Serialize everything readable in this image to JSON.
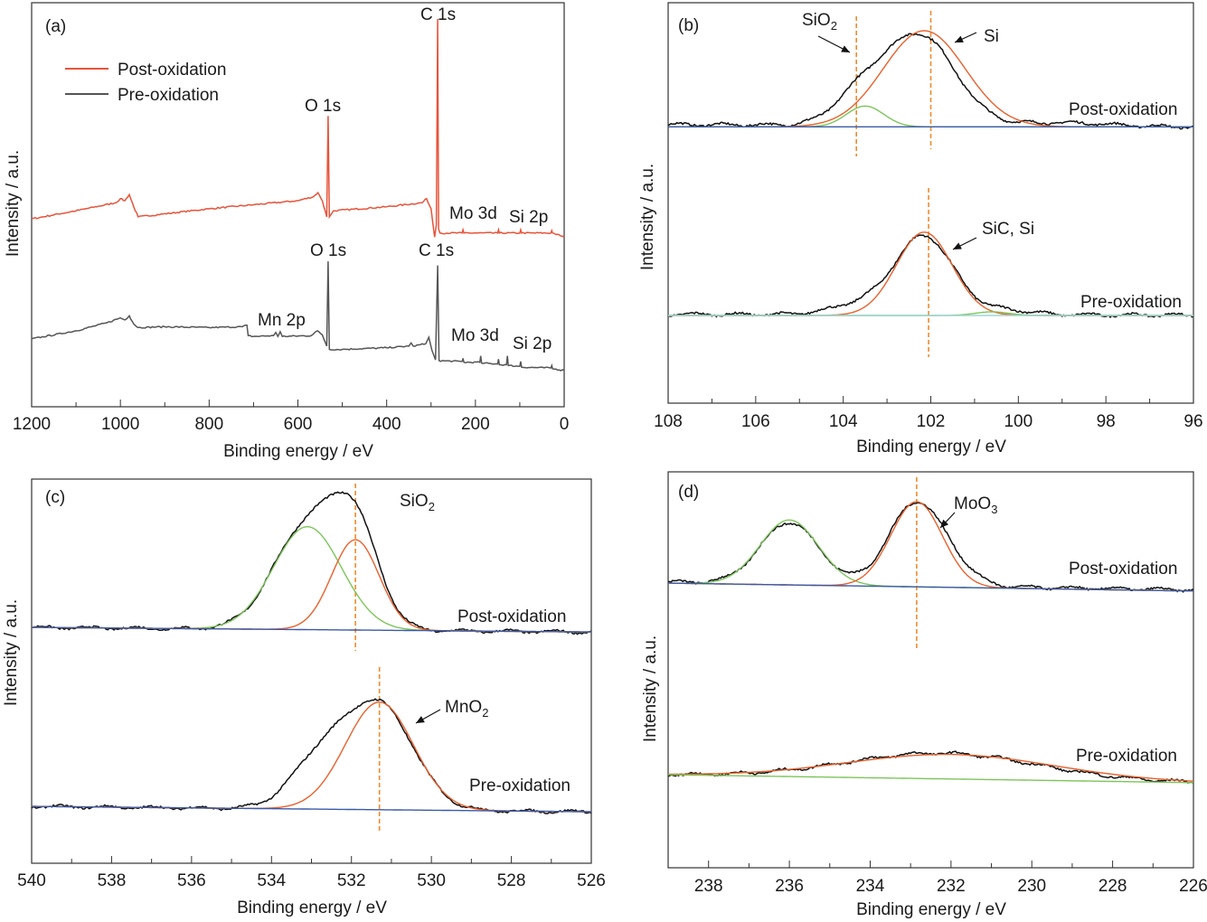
{
  "chart_data": [
    {
      "panel": "(a)",
      "type": "line",
      "xlabel": "Binding energy / eV",
      "ylabel": "Intensity / a.u.",
      "xlim": [
        1200,
        0
      ],
      "ylim": [
        0,
        100
      ],
      "xticks": [
        1200,
        1000,
        800,
        600,
        400,
        200,
        0
      ],
      "minor_step": 100,
      "legend": {
        "position": "top-left",
        "entries": [
          {
            "label": "Post-oxidation",
            "color": "#e8533a"
          },
          {
            "label": "Pre-oxidation",
            "color": "#555555"
          }
        ]
      },
      "series": [
        {
          "name": "Post-oxidation",
          "color": "#e8533a",
          "points": [
            [
              1200,
              46.5
            ],
            [
              1100,
              48.5
            ],
            [
              1010,
              50.5
            ],
            [
              1000,
              51.5
            ],
            [
              990,
              51
            ],
            [
              980,
              52.5
            ],
            [
              970,
              49.5
            ],
            [
              960,
              47
            ],
            [
              800,
              49
            ],
            [
              700,
              50
            ],
            [
              600,
              51
            ],
            [
              565,
              52
            ],
            [
              555,
              53
            ],
            [
              545,
              51
            ],
            [
              535,
              47
            ],
            [
              532,
              72
            ],
            [
              529,
              47
            ],
            [
              520,
              48.5
            ],
            [
              400,
              49.5
            ],
            [
              320,
              50.5
            ],
            [
              310,
              51.5
            ],
            [
              300,
              49
            ],
            [
              292,
              42
            ],
            [
              288,
              45
            ],
            [
              285,
              96
            ],
            [
              283,
              44
            ],
            [
              280,
              43
            ],
            [
              230,
              43
            ],
            [
              228,
              43.8
            ],
            [
              226,
              43
            ],
            [
              150,
              43
            ],
            [
              148,
              43.8
            ],
            [
              146,
              43
            ],
            [
              100,
              43
            ],
            [
              98,
              43.8
            ],
            [
              96,
              43
            ],
            [
              30,
              43
            ],
            [
              28,
              43.6
            ],
            [
              26,
              43
            ],
            [
              0,
              42
            ]
          ]
        },
        {
          "name": "Pre-oxidation",
          "color": "#555555",
          "points": [
            [
              1200,
              16.8
            ],
            [
              1100,
              18.8
            ],
            [
              1030,
              20.8
            ],
            [
              1000,
              22
            ],
            [
              990,
              21.5
            ],
            [
              980,
              22.5
            ],
            [
              970,
              20.5
            ],
            [
              960,
              19.6
            ],
            [
              900,
              19.8
            ],
            [
              800,
              19.6
            ],
            [
              725,
              19.8
            ],
            [
              715,
              20.2
            ],
            [
              712,
              17.6
            ],
            [
              700,
              17.4
            ],
            [
              655,
              17.6
            ],
            [
              650,
              18.4
            ],
            [
              645,
              17.4
            ],
            [
              640,
              18.6
            ],
            [
              635,
              17.4
            ],
            [
              570,
              17.6
            ],
            [
              556,
              18.8
            ],
            [
              545,
              17.8
            ],
            [
              535,
              15
            ],
            [
              532,
              36
            ],
            [
              529,
              14.2
            ],
            [
              500,
              14.2
            ],
            [
              400,
              14.6
            ],
            [
              350,
              15
            ],
            [
              345,
              15.8
            ],
            [
              340,
              15
            ],
            [
              312,
              15.6
            ],
            [
              305,
              17.2
            ],
            [
              298,
              14
            ],
            [
              290,
              11.6
            ],
            [
              285,
              35
            ],
            [
              282,
              11.4
            ],
            [
              230,
              11.2
            ],
            [
              228,
              12
            ],
            [
              226,
              11
            ],
            [
              190,
              11
            ],
            [
              188,
              12.6
            ],
            [
              186,
              10.8
            ],
            [
              150,
              10.6
            ],
            [
              148,
              11.8
            ],
            [
              146,
              10.4
            ],
            [
              130,
              10.4
            ],
            [
              128,
              12.6
            ],
            [
              126,
              10.2
            ],
            [
              100,
              10
            ],
            [
              98,
              11.2
            ],
            [
              96,
              9.8
            ],
            [
              30,
              9.6
            ],
            [
              28,
              10.2
            ],
            [
              26,
              9.4
            ],
            [
              0,
              9
            ]
          ]
        }
      ],
      "annotations": [
        {
          "text": "(a)"
        },
        {
          "text": "C 1s"
        },
        {
          "text": "O 1s"
        },
        {
          "text": "Mo 3d"
        },
        {
          "text": "Si 2p"
        },
        {
          "text": "O 1s"
        },
        {
          "text": "C 1s"
        },
        {
          "text": "Mn 2p"
        },
        {
          "text": "Mo 3d"
        },
        {
          "text": "Si 2p"
        }
      ]
    },
    {
      "panel": "(b)",
      "type": "line",
      "xlabel": "Binding energy / eV",
      "ylabel": "Intensity / a.u.",
      "xlim": [
        108,
        96
      ],
      "ylim": [
        0,
        100
      ],
      "xticks": [
        108,
        106,
        104,
        102,
        100,
        98,
        96
      ],
      "minor_step": 1,
      "series": [
        {
          "name": "Post-oxidation raw",
          "color": "#111111",
          "noisy": true,
          "baseline": [
            69.6,
            69
          ],
          "peaks": [
            {
              "center": 102.25,
              "height": 22.5,
              "fwhm": 1.9
            },
            {
              "center": 103.6,
              "height": 7,
              "fwhm": 1.4
            },
            {
              "center": 99,
              "height": 0.9,
              "fwhm": 2.5
            }
          ]
        },
        {
          "name": "Post-oxidation Si fit",
          "color": "#e8602c",
          "baseline": [
            69,
            69
          ],
          "peaks": [
            {
              "center": 102.15,
              "height": 24,
              "fwhm": 2.2
            }
          ]
        },
        {
          "name": "Post-oxidation SiO2 fit",
          "color": "#7dc55a",
          "baseline": [
            69,
            69
          ],
          "peaks": [
            {
              "center": 103.5,
              "height": 5.2,
              "fwhm": 1.0
            }
          ]
        },
        {
          "name": "Post-oxidation background",
          "color": "#3a5aa8",
          "baseline": [
            69,
            69
          ],
          "peaks": []
        },
        {
          "name": "Pre-oxidation raw",
          "color": "#111111",
          "noisy": true,
          "baseline": [
            22.2,
            22
          ],
          "peaks": [
            {
              "center": 102.15,
              "height": 19.5,
              "fwhm": 1.55
            },
            {
              "center": 103.6,
              "height": 2.5,
              "fwhm": 1.6
            },
            {
              "center": 100.3,
              "height": 1.2,
              "fwhm": 1.4
            }
          ]
        },
        {
          "name": "Pre-oxidation SiC/Si fit",
          "color": "#e8602c",
          "baseline": [
            21.9,
            21.9
          ],
          "peaks": [
            {
              "center": 102.15,
              "height": 20.8,
              "fwhm": 1.5
            }
          ]
        },
        {
          "name": "Pre-oxidation minor fit",
          "color": "#7dc55a",
          "baseline": [
            21.9,
            21.9
          ],
          "peaks": [
            {
              "center": 100.6,
              "height": 0.9,
              "fwhm": 0.9
            }
          ]
        },
        {
          "name": "Pre-oxidation background",
          "color": "#9fd6d6",
          "baseline": [
            21.9,
            21.9
          ],
          "peaks": []
        }
      ],
      "reference_lines_eV": [
        103.7,
        102.0,
        102.05
      ],
      "annotations": [
        {
          "text": "(b)"
        },
        {
          "text": "SiO",
          "sub": "2"
        },
        {
          "text": "Si"
        },
        {
          "text": "Post-oxidation"
        },
        {
          "text": "SiC, Si"
        },
        {
          "text": "Pre-oxidation"
        }
      ]
    },
    {
      "panel": "(c)",
      "type": "line",
      "xlabel": "Binding energy / eV",
      "ylabel": "Intensity / a.u.",
      "xlim": [
        540,
        526
      ],
      "ylim": [
        0,
        100
      ],
      "xticks": [
        540,
        538,
        536,
        534,
        532,
        530,
        528,
        526
      ],
      "minor_step": 1,
      "series": [
        {
          "name": "Post-oxidation raw",
          "color": "#111111",
          "noisy": true,
          "baseline": [
            61.4,
            60.2
          ],
          "peaks": [
            {
              "center": 533.1,
              "height": 26.8,
              "fwhm": 2.0
            },
            {
              "center": 531.9,
              "height": 23.5,
              "fwhm": 1.4
            }
          ]
        },
        {
          "name": "Post-oxidation fit 1",
          "color": "#7dc55a",
          "baseline": [
            61.4,
            60.2
          ],
          "peaks": [
            {
              "center": 533.1,
              "height": 26.8,
              "fwhm": 2.0
            }
          ]
        },
        {
          "name": "Post-oxidation SiO2 fit",
          "color": "#e8602c",
          "baseline": [
            61.4,
            60.2
          ],
          "peaks": [
            {
              "center": 531.9,
              "height": 23.5,
              "fwhm": 1.4
            }
          ]
        },
        {
          "name": "Post-oxidation background",
          "color": "#3a5aa8",
          "baseline": [
            61.4,
            60.2
          ],
          "peaks": []
        },
        {
          "name": "Pre-oxidation raw",
          "color": "#111111",
          "noisy": true,
          "baseline": [
            14.8,
            13.4
          ],
          "peaks": [
            {
              "center": 531.3,
              "height": 27,
              "fwhm": 2.0
            },
            {
              "center": 532.8,
              "height": 12,
              "fwhm": 1.7
            }
          ]
        },
        {
          "name": "Pre-oxidation MnO2 fit",
          "color": "#e8602c",
          "baseline": [
            14.8,
            13.4
          ],
          "peaks": [
            {
              "center": 531.3,
              "height": 28,
              "fwhm": 2.0
            }
          ]
        },
        {
          "name": "Pre-oxidation background",
          "color": "#3a5aa8",
          "baseline": [
            14.8,
            13.4
          ],
          "peaks": []
        }
      ],
      "reference_lines_eV": [
        531.9,
        531.3
      ],
      "annotations": [
        {
          "text": "(c)"
        },
        {
          "text": "SiO",
          "sub": "2"
        },
        {
          "text": "Post-oxidation"
        },
        {
          "text": "MnO",
          "sub": "2"
        },
        {
          "text": "Pre-oxidation"
        }
      ]
    },
    {
      "panel": "(d)",
      "type": "line",
      "xlabel": "Binding energy / eV",
      "ylabel": "Intensity / a.u.",
      "xlim": [
        239,
        226
      ],
      "ylim": [
        0,
        100
      ],
      "xticks": [
        238,
        236,
        234,
        232,
        230,
        228,
        226
      ],
      "minor_step": 1,
      "series": [
        {
          "name": "Post-oxidation raw",
          "color": "#111111",
          "noisy": true,
          "baseline": [
            72.2,
            70.2
          ],
          "peaks": [
            {
              "center": 236.0,
              "height": 15.5,
              "fwhm": 1.7
            },
            {
              "center": 232.85,
              "height": 21,
              "fwhm": 1.6
            },
            {
              "center": 231.8,
              "height": 2,
              "fwhm": 1.2
            }
          ]
        },
        {
          "name": "Post-oxidation fit 1",
          "color": "#7dc55a",
          "baseline": [
            71.9,
            69.9
          ],
          "peaks": [
            {
              "center": 236.0,
              "height": 16.4,
              "fwhm": 1.7
            }
          ]
        },
        {
          "name": "Post-oxidation MoO3 fit",
          "color": "#e8602c",
          "baseline": [
            71.9,
            69.9
          ],
          "peaks": [
            {
              "center": 232.85,
              "height": 21.5,
              "fwhm": 1.5
            }
          ]
        },
        {
          "name": "Post-oxidation background",
          "color": "#3a5aa8",
          "baseline": [
            71.9,
            69.9
          ],
          "peaks": []
        },
        {
          "name": "Pre-oxidation raw",
          "color": "#111111",
          "noisy": true,
          "baseline": [
            23.5,
            21.5
          ],
          "peaks": [
            {
              "center": 232.2,
              "height": 6.5,
              "fwhm": 5.5
            }
          ]
        },
        {
          "name": "Pre-oxidation fit",
          "color": "#e8602c",
          "baseline": [
            23.5,
            21.5
          ],
          "peaks": [
            {
              "center": 232.0,
              "height": 6.2,
              "fwhm": 6.0
            }
          ]
        },
        {
          "name": "Pre-oxidation background",
          "color": "#7dc55a",
          "baseline": [
            23.5,
            21.5
          ],
          "peaks": []
        }
      ],
      "reference_lines_eV": [
        232.85
      ],
      "annotations": [
        {
          "text": "(d)"
        },
        {
          "text": "MoO",
          "sub": "3"
        },
        {
          "text": "Post-oxidation"
        },
        {
          "text": "Pre-oxidation"
        }
      ]
    }
  ]
}
